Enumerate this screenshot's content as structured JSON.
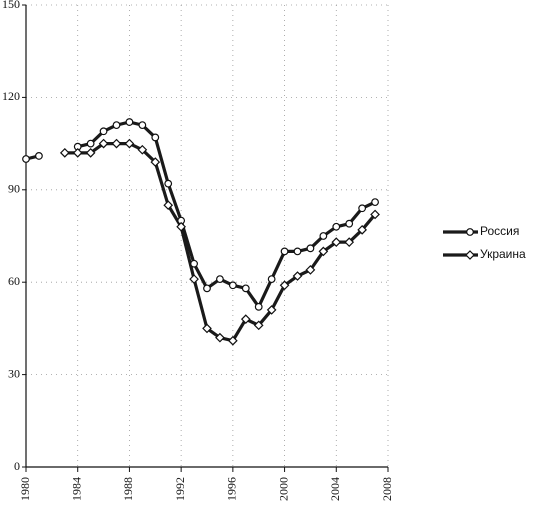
{
  "chart_data": {
    "type": "line",
    "x": [
      1980,
      1981,
      1982,
      1983,
      1984,
      1985,
      1986,
      1987,
      1988,
      1989,
      1990,
      1991,
      1992,
      1993,
      1994,
      1995,
      1996,
      1997,
      1998,
      1999,
      2000,
      2001,
      2002,
      2003,
      2004,
      2005,
      2006,
      2007
    ],
    "series": [
      {
        "name": "Россия",
        "color": "#1a1a1a",
        "marker": "circle",
        "values": [
          100,
          101,
          null,
          null,
          104,
          105,
          109,
          111,
          112,
          111,
          107,
          92,
          80,
          66,
          58,
          61,
          59,
          58,
          52,
          61,
          70,
          70,
          71,
          75,
          78,
          79,
          84,
          86
        ]
      },
      {
        "name": "Украина",
        "color": "#1a1a1a",
        "marker": "diamond",
        "values": [
          null,
          null,
          null,
          102,
          102,
          102,
          105,
          105,
          105,
          103,
          99,
          85,
          78,
          61,
          45,
          42,
          41,
          48,
          46,
          51,
          59,
          62,
          64,
          70,
          73,
          73,
          77,
          82
        ]
      }
    ],
    "xlim": [
      1980,
      2008
    ],
    "xticks": [
      1980,
      1984,
      1988,
      1992,
      1996,
      2000,
      2004,
      2008
    ],
    "ylim": [
      0,
      150
    ],
    "yticks": [
      0,
      30,
      60,
      90,
      120,
      150
    ],
    "grid": true,
    "legend": "right"
  }
}
